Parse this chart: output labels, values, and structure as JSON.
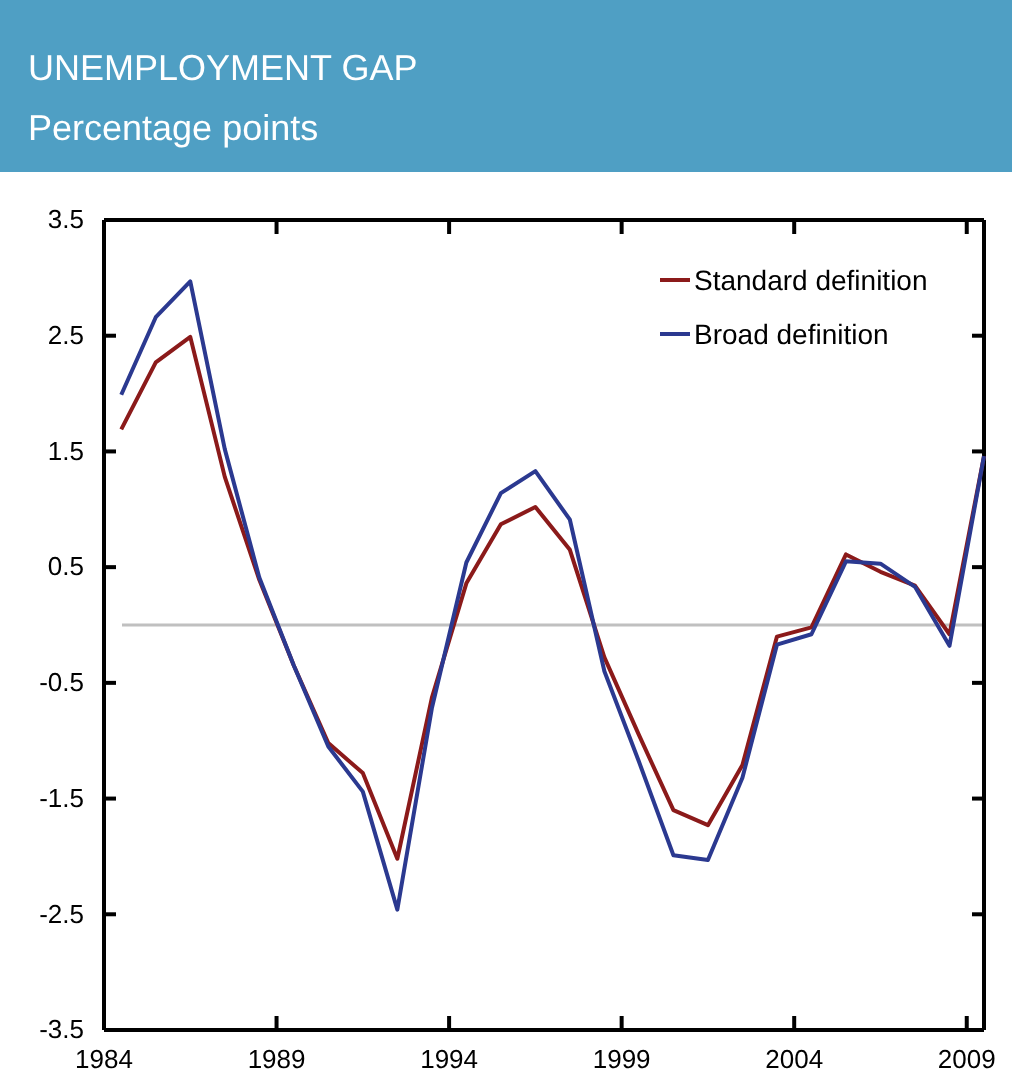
{
  "chart_data": {
    "type": "line",
    "title": "UNEMPLOYMENT GAP",
    "subtitle": "Percentage points",
    "x": [
      1984.5,
      1985.5,
      1986.5,
      1987.5,
      1988.5,
      1989.5,
      1990.5,
      1991.5,
      1992.5,
      1993.5,
      1994.5,
      1995.5,
      1996.5,
      1997.5,
      1998.5,
      1999.5,
      2000.5,
      2001.5,
      2002.5,
      2003.5,
      2004.5,
      2005.5,
      2006.5,
      2007.5,
      2008.5,
      2009.5
    ],
    "series": [
      {
        "name": "Standard definition",
        "color": "#8b1a1a",
        "values": [
          1.69,
          2.27,
          2.49,
          1.28,
          0.39,
          -0.35,
          -1.02,
          -1.28,
          -2.02,
          -0.63,
          0.36,
          0.87,
          1.02,
          0.65,
          -0.28,
          -0.95,
          -1.6,
          -1.73,
          -1.21,
          -0.1,
          -0.02,
          0.61,
          0.46,
          0.34,
          -0.08,
          1.46
        ]
      },
      {
        "name": "Broad definition",
        "color": "#2b3990",
        "values": [
          1.99,
          2.66,
          2.97,
          1.52,
          0.41,
          -0.35,
          -1.05,
          -1.44,
          -2.46,
          -0.72,
          0.54,
          1.14,
          1.33,
          0.91,
          -0.4,
          -1.18,
          -1.99,
          -2.03,
          -1.32,
          -0.17,
          -0.08,
          0.55,
          0.53,
          0.33,
          -0.18,
          1.46
        ]
      }
    ],
    "xlim": [
      1984,
      2009.5
    ],
    "xticks": [
      1984,
      1989,
      1994,
      1999,
      2004,
      2009
    ],
    "ylim": [
      -3.5,
      3.5
    ],
    "yticks": [
      -3.5,
      -2.5,
      -1.5,
      -0.5,
      0.5,
      1.5,
      2.5,
      3.5
    ],
    "ref_lines": [
      {
        "axis": "y",
        "value": 0,
        "color": "#c0c0c0"
      }
    ],
    "legend": "top right",
    "grid": false,
    "marker": "none",
    "line_style": "solid"
  }
}
